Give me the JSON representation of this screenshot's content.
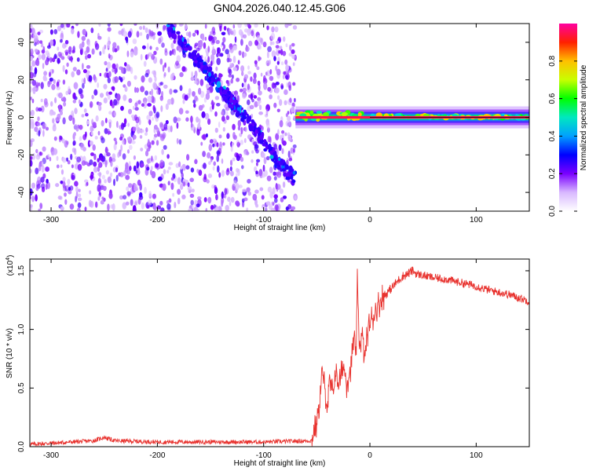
{
  "title": "GN04.2026.040.12.45.G06",
  "colors": {
    "snr_line": "#e8322e",
    "axis": "#000000",
    "background": "#ffffff"
  },
  "chart_data": [
    {
      "type": "heatmap",
      "title": "GN04.2026.040.12.45.G06",
      "xlabel": "Height of straight line (km)",
      "ylabel": "Frequency (Hz)",
      "xlim": [
        -320,
        150
      ],
      "ylim": [
        -50,
        50
      ],
      "x_ticks": [
        -300,
        -200,
        -100,
        0,
        100
      ],
      "x_tick_labels": [
        "-300",
        "-200",
        "-100",
        "0",
        "100"
      ],
      "y_ticks": [
        -40,
        -20,
        0,
        20,
        40
      ],
      "y_tick_labels": [
        "-40",
        "-20",
        "0",
        "20",
        "40"
      ],
      "colorbar": {
        "label": "Normalized spectral amplitude",
        "range": [
          0,
          1
        ],
        "ticks": [
          0.0,
          0.2,
          0.4,
          0.6,
          0.8
        ],
        "tick_labels": [
          "0.0",
          "0.2",
          "0.4",
          "0.6",
          "0.8"
        ]
      },
      "ridges": [
        {
          "name": "diagonal",
          "x": [
            -190,
            -150,
            -110,
            -85,
            -70
          ],
          "y": [
            48,
            22,
            -5,
            -25,
            -33
          ],
          "amplitude": 0.25
        },
        {
          "name": "zero-frequency",
          "x": [
            -70,
            150
          ],
          "y": [
            1,
            0
          ],
          "amplitude": 0.95
        }
      ]
    },
    {
      "type": "line",
      "xlabel": "Height of straight line (km)",
      "ylabel": "SNR (10 * v/v)",
      "y_scale_label": "(x10",
      "y_scale_exp": "4",
      "xlim": [
        -320,
        150
      ],
      "ylim": [
        0,
        1.6
      ],
      "x_ticks": [
        -300,
        -200,
        -100,
        0,
        100
      ],
      "x_tick_labels": [
        "-300",
        "-200",
        "-100",
        "0",
        "100"
      ],
      "y_ticks": [
        0.0,
        0.5,
        1.0,
        1.5
      ],
      "y_tick_labels": [
        "0.0",
        "0.5",
        "1.0",
        "1.5"
      ],
      "series": [
        {
          "name": "SNR",
          "x": [
            -320,
            -300,
            -260,
            -250,
            -240,
            -200,
            -150,
            -100,
            -55,
            -50,
            -47,
            -45,
            -42,
            -40,
            -38,
            -35,
            -32,
            -30,
            -27,
            -25,
            -22,
            -20,
            -17,
            -15,
            -13,
            -12,
            -10,
            -7,
            -5,
            -2,
            0,
            5,
            10,
            15,
            20,
            25,
            30,
            35,
            40,
            45,
            50,
            60,
            70,
            80,
            90,
            100,
            110,
            120,
            130,
            140,
            150
          ],
          "y": [
            0.02,
            0.03,
            0.05,
            0.08,
            0.05,
            0.04,
            0.04,
            0.04,
            0.05,
            0.2,
            0.4,
            0.65,
            0.45,
            0.35,
            0.55,
            0.45,
            0.65,
            0.55,
            0.6,
            0.7,
            0.55,
            0.6,
            0.75,
            0.95,
            0.7,
            1.45,
            0.85,
            0.95,
            0.75,
            1.0,
            1.05,
            1.15,
            1.25,
            1.3,
            1.35,
            1.4,
            1.45,
            1.47,
            1.5,
            1.47,
            1.46,
            1.44,
            1.43,
            1.41,
            1.39,
            1.37,
            1.34,
            1.32,
            1.3,
            1.27,
            1.24
          ]
        }
      ]
    }
  ]
}
